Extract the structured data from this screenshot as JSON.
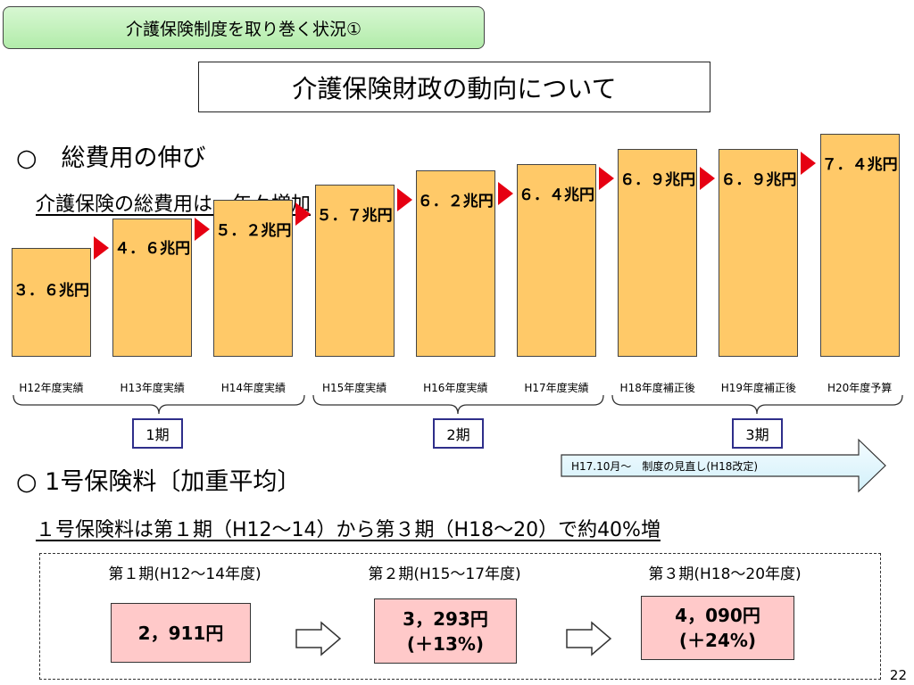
{
  "header": {
    "tab_title": "介護保険制度を取り巻く状況①"
  },
  "main": {
    "title": "介護保険財政の動向について"
  },
  "section1": {
    "heading": "○　総費用の伸び",
    "subheading": "介護保険の総費用は、年々増加"
  },
  "chart_data": {
    "type": "bar",
    "unit": "兆円",
    "categories": [
      "H12年度実績",
      "H13年度実績",
      "H14年度実績",
      "H15年度実績",
      "H16年度実績",
      "H17年度実績",
      "H18年度補正後",
      "H19年度補正後",
      "H20年度予算"
    ],
    "values": [
      3.6,
      4.6,
      5.2,
      5.7,
      6.2,
      6.4,
      6.9,
      6.9,
      7.4
    ],
    "data_labels": [
      "３．６兆円",
      "４．６兆円",
      "５．２兆円",
      "５．７兆円",
      "６．２兆円",
      "６．４兆円",
      "６．９兆円",
      "６．９兆円",
      "７．４兆円"
    ],
    "colors": {
      "bar": "#ffc968",
      "arrow": "#e60012"
    }
  },
  "periods": [
    {
      "label": "1期"
    },
    {
      "label": "2期"
    },
    {
      "label": "3期"
    }
  ],
  "revision_arrow": {
    "text": "H17.10月～　制度の見直し(H18改定)"
  },
  "section2": {
    "heading": "○ 1号保険料〔加重平均〕",
    "subheading": "１号保険料は第１期（H12～14）から第３期（H18～20）で約40%増"
  },
  "premiums": [
    {
      "period": "第１期(H12～14年度)",
      "amount": "2，911円",
      "change": ""
    },
    {
      "period": "第２期(H15～17年度)",
      "amount": "3，293円",
      "change": "(＋13%)"
    },
    {
      "period": "第３期(H18～20年度)",
      "amount": "4，090円",
      "change": "(＋24%)"
    }
  ],
  "page_number": "22"
}
